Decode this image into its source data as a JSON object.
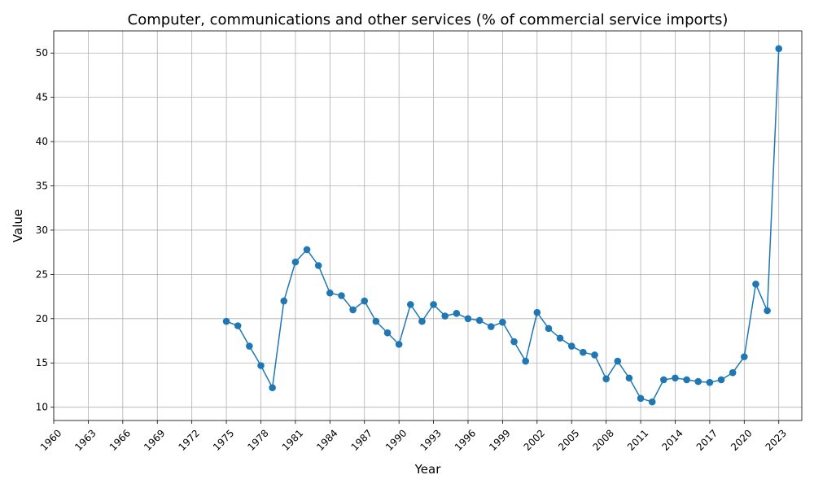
{
  "chart_data": {
    "type": "line",
    "title": "Computer, communications and other services (% of commercial service imports)",
    "xlabel": "Year",
    "ylabel": "Value",
    "xlim": [
      1960,
      2025
    ],
    "ylim": [
      8.5,
      52.5
    ],
    "x_ticks": [
      1960,
      1963,
      1966,
      1969,
      1972,
      1975,
      1978,
      1981,
      1984,
      1987,
      1990,
      1993,
      1996,
      1999,
      2002,
      2005,
      2008,
      2011,
      2014,
      2017,
      2020,
      2023
    ],
    "y_ticks": [
      10,
      15,
      20,
      25,
      30,
      35,
      40,
      45,
      50
    ],
    "grid": true,
    "color": "#1f77b4",
    "x": [
      1975,
      1976,
      1977,
      1978,
      1979,
      1980,
      1981,
      1982,
      1983,
      1984,
      1985,
      1986,
      1987,
      1988,
      1989,
      1990,
      1991,
      1992,
      1993,
      1994,
      1995,
      1996,
      1997,
      1998,
      1999,
      2000,
      2001,
      2002,
      2003,
      2004,
      2005,
      2006,
      2007,
      2008,
      2009,
      2010,
      2011,
      2012,
      2013,
      2014,
      2015,
      2016,
      2017,
      2018,
      2019,
      2020,
      2021,
      2022,
      2023
    ],
    "values": [
      19.7,
      19.2,
      16.9,
      14.7,
      12.2,
      22.0,
      26.4,
      27.8,
      26.0,
      22.9,
      22.6,
      21.0,
      22.0,
      19.7,
      18.4,
      17.1,
      21.6,
      19.7,
      21.6,
      20.3,
      20.6,
      20.0,
      19.8,
      19.1,
      19.6,
      17.4,
      15.2,
      20.7,
      18.9,
      17.8,
      16.9,
      16.2,
      15.9,
      13.2,
      15.2,
      13.3,
      11.0,
      10.6,
      13.1,
      13.3,
      13.1,
      12.9,
      12.8,
      13.1,
      13.9,
      15.7,
      23.9,
      20.9,
      50.5
    ]
  }
}
